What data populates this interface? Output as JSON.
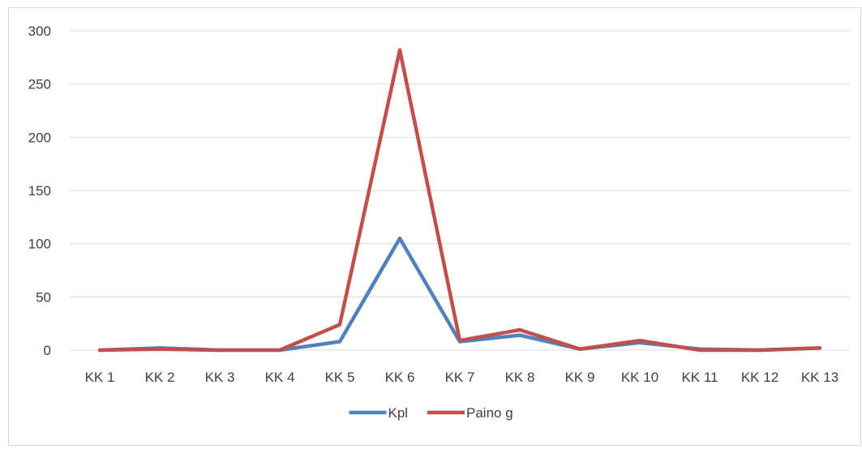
{
  "chart_data": {
    "type": "line",
    "title": "",
    "xlabel": "",
    "ylabel": "",
    "categories": [
      "KK 1",
      "KK 2",
      "KK 3",
      "KK 4",
      "KK 5",
      "KK 6",
      "KK 7",
      "KK 8",
      "KK 9",
      "KK 10",
      "KK 11",
      "KK 12",
      "KK 13"
    ],
    "ylim": [
      0,
      300
    ],
    "yticks": [
      0,
      50,
      100,
      150,
      200,
      250,
      300
    ],
    "ytick_labels": [
      "0",
      "50",
      "100",
      "150",
      "200",
      "250",
      "300"
    ],
    "grid": true,
    "legend_position": "bottom",
    "series": [
      {
        "name": "Kpl",
        "color": "#4f81bd",
        "values": [
          0,
          2,
          0,
          0,
          8,
          105,
          8,
          14,
          1,
          7,
          1,
          0,
          2
        ]
      },
      {
        "name": "Paino g",
        "color": "#c0504d",
        "values": [
          0,
          1,
          0,
          0,
          24,
          282,
          9,
          19,
          1,
          9,
          0,
          0,
          2
        ]
      }
    ]
  }
}
